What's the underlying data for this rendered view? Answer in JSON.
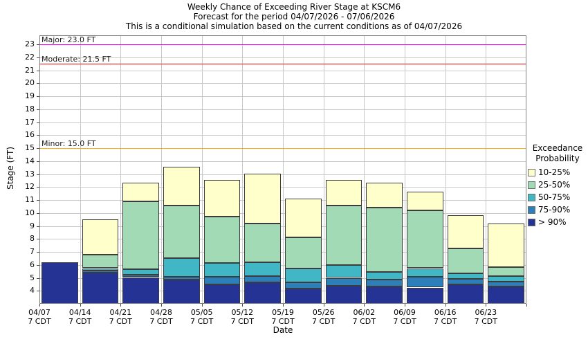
{
  "chart_data": {
    "type": "bar",
    "stacked": true,
    "title": "Weekly Chance of Exceeding River Stage at KSCM6",
    "subtitle": "Forecast for the period 04/07/2026 - 07/06/2026",
    "note": "This is a conditional simulation based on the current conditions as of 04/07/2026",
    "xlabel": "Date",
    "ylabel": "Stage (FT)",
    "ylim": [
      3.0,
      23.7
    ],
    "baseline": 3.0,
    "yticks": [
      4,
      5,
      6,
      7,
      8,
      9,
      10,
      11,
      12,
      13,
      14,
      15,
      16,
      17,
      18,
      19,
      20,
      21,
      22,
      23
    ],
    "categories": [
      "04/07",
      "04/14",
      "04/21",
      "04/28",
      "05/05",
      "05/12",
      "05/19",
      "05/26",
      "06/02",
      "06/09",
      "06/16",
      "06/23"
    ],
    "tick_time_label": "7 CDT",
    "series": [
      {
        "name": "> 90%",
        "color": "#253494",
        "tops": [
          6.2,
          5.4,
          5.05,
          4.85,
          4.5,
          4.65,
          4.15,
          4.4,
          4.35,
          4.25,
          4.5,
          4.35
        ]
      },
      {
        "name": "75-90%",
        "color": "#2c7fb8",
        "tops": [
          null,
          5.55,
          5.25,
          5.1,
          5.1,
          5.15,
          4.65,
          5.0,
          4.85,
          5.1,
          4.9,
          4.7
        ]
      },
      {
        "name": "50-75%",
        "color": "#41b6c4",
        "tops": [
          null,
          5.75,
          5.65,
          6.5,
          6.15,
          6.2,
          5.7,
          6.0,
          5.45,
          5.75,
          5.35,
          5.15
        ]
      },
      {
        "name": "25-50%",
        "color": "#a1dab4",
        "tops": [
          null,
          6.8,
          10.9,
          10.6,
          9.7,
          9.2,
          8.1,
          10.6,
          10.4,
          10.2,
          7.25,
          5.85
        ]
      },
      {
        "name": "10-25%",
        "color": "#ffffcc",
        "tops": [
          null,
          9.5,
          12.35,
          13.55,
          12.55,
          13.05,
          11.1,
          12.55,
          12.35,
          11.65,
          9.85,
          9.2
        ]
      }
    ],
    "thresholds": [
      {
        "name": "Major",
        "label": "Major: 23.0 FT",
        "value": 23.0,
        "color": "#ff00ff"
      },
      {
        "name": "Moderate",
        "label": "Moderate: 21.5 FT",
        "value": 21.5,
        "color": "#ff0000"
      },
      {
        "name": "Minor",
        "label": "Minor: 15.0 FT",
        "value": 15.0,
        "color": "#ffaa00"
      }
    ],
    "legend": {
      "title_line1": "Exceedance",
      "title_line2": "Probability",
      "entries": [
        {
          "label": "10-25%",
          "color": "#ffffcc"
        },
        {
          "label": "25-50%",
          "color": "#a1dab4"
        },
        {
          "label": "50-75%",
          "color": "#41b6c4"
        },
        {
          "label": "75-90%",
          "color": "#2c7fb8"
        },
        {
          "label": "> 90%",
          "color": "#253494"
        }
      ]
    }
  }
}
